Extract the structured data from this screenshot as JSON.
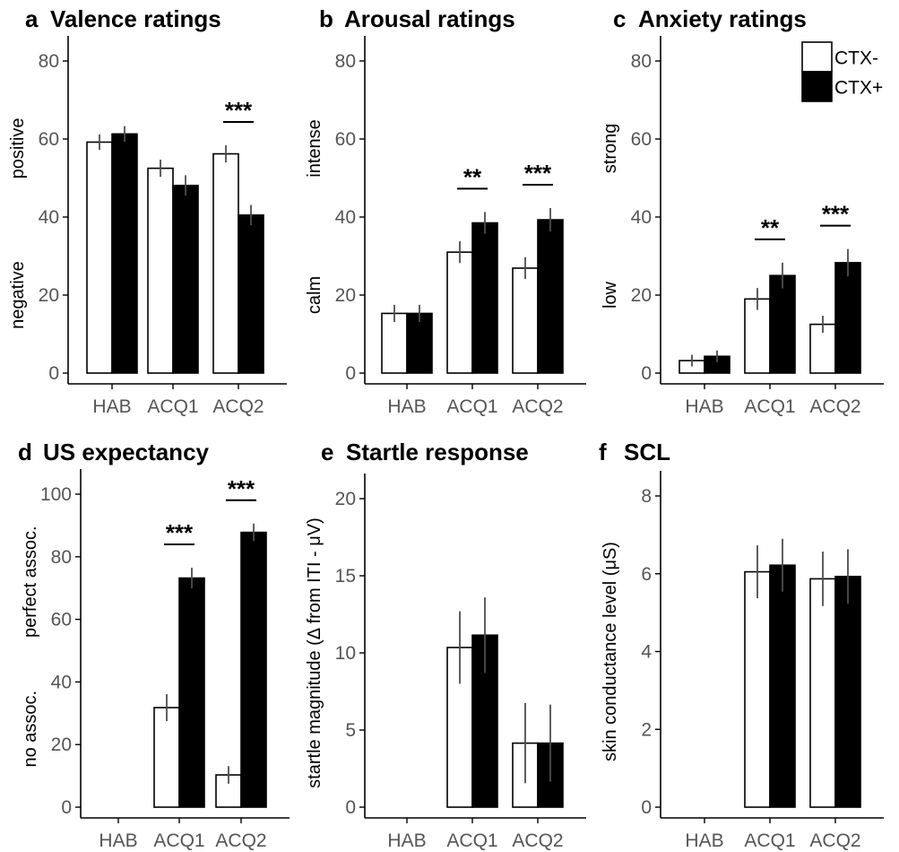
{
  "legend": {
    "entries": [
      {
        "label": "CTX-",
        "color": "#ffffff"
      },
      {
        "label": "CTX+",
        "color": "#000000"
      }
    ]
  },
  "colors": {
    "ctx_minus": "#ffffff",
    "ctx_plus": "#000000",
    "axis": "#000000",
    "error_bar": "#4d4d4d"
  },
  "chart_data": [
    {
      "type": "bar",
      "letter": "a",
      "title": "Valence ratings",
      "categories": [
        "HAB",
        "ACQ1",
        "ACQ2"
      ],
      "series": [
        {
          "name": "CTX-",
          "values": [
            59.2,
            52.5,
            56.2
          ],
          "errors": [
            2.0,
            2.2,
            2.2
          ]
        },
        {
          "name": "CTX+",
          "values": [
            61.3,
            48.1,
            40.5
          ],
          "errors": [
            2.0,
            2.6,
            2.6
          ]
        }
      ],
      "ylim": [
        0,
        80
      ],
      "yticks": [
        0,
        20,
        40,
        60,
        80
      ],
      "ylabel_top": "positive",
      "ylabel_bottom": "negative",
      "ylabel": "",
      "significance": [
        {
          "category_index": 2,
          "label": "***"
        }
      ]
    },
    {
      "type": "bar",
      "letter": "b",
      "title": "Arousal ratings",
      "categories": [
        "HAB",
        "ACQ1",
        "ACQ2"
      ],
      "series": [
        {
          "name": "CTX-",
          "values": [
            15.3,
            31.0,
            26.9
          ],
          "errors": [
            2.2,
            2.8,
            2.8
          ]
        },
        {
          "name": "CTX+",
          "values": [
            15.3,
            38.5,
            39.3
          ],
          "errors": [
            2.2,
            2.8,
            3.0
          ]
        }
      ],
      "ylim": [
        0,
        80
      ],
      "yticks": [
        0,
        20,
        40,
        60,
        80
      ],
      "ylabel_top": "intense",
      "ylabel_bottom": "calm",
      "ylabel": "",
      "significance": [
        {
          "category_index": 1,
          "label": "**"
        },
        {
          "category_index": 2,
          "label": "***"
        }
      ]
    },
    {
      "type": "bar",
      "letter": "c",
      "title": "Anxiety ratings",
      "categories": [
        "HAB",
        "ACQ1",
        "ACQ2"
      ],
      "series": [
        {
          "name": "CTX-",
          "values": [
            3.2,
            19.0,
            12.5
          ],
          "errors": [
            1.5,
            2.8,
            2.2
          ]
        },
        {
          "name": "CTX+",
          "values": [
            4.3,
            25.0,
            28.3
          ],
          "errors": [
            1.5,
            3.3,
            3.5
          ]
        }
      ],
      "ylim": [
        0,
        80
      ],
      "yticks": [
        0,
        20,
        40,
        60,
        80
      ],
      "ylabel_top": "strong",
      "ylabel_bottom": "low",
      "ylabel": "",
      "significance": [
        {
          "category_index": 1,
          "label": "**"
        },
        {
          "category_index": 2,
          "label": "***"
        }
      ],
      "show_legend": true
    },
    {
      "type": "bar",
      "letter": "d",
      "title": "US expectancy",
      "categories": [
        "HAB",
        "ACQ1",
        "ACQ2"
      ],
      "series": [
        {
          "name": "CTX-",
          "values": [
            null,
            31.8,
            10.3
          ],
          "errors": [
            null,
            4.3,
            2.8
          ]
        },
        {
          "name": "CTX+",
          "values": [
            null,
            73.2,
            87.8
          ],
          "errors": [
            null,
            3.3,
            2.8
          ]
        }
      ],
      "ylim": [
        0,
        100
      ],
      "yticks": [
        0,
        20,
        40,
        60,
        80,
        100
      ],
      "ylabel_top": "perfect assoc.",
      "ylabel_bottom": "no assoc.",
      "ylabel": "",
      "significance": [
        {
          "category_index": 1,
          "label": "***"
        },
        {
          "category_index": 2,
          "label": "***"
        }
      ]
    },
    {
      "type": "bar",
      "letter": "e",
      "title": "Startle response",
      "categories": [
        "HAB",
        "ACQ1",
        "ACQ2"
      ],
      "series": [
        {
          "name": "CTX-",
          "values": [
            null,
            10.35,
            4.15
          ],
          "errors": [
            null,
            2.35,
            2.6
          ]
        },
        {
          "name": "CTX+",
          "values": [
            null,
            11.15,
            4.15
          ],
          "errors": [
            null,
            2.45,
            2.5
          ]
        }
      ],
      "ylim": [
        0,
        20
      ],
      "yticks": [
        0,
        5,
        10,
        15,
        20
      ],
      "ylabel": "startle magnitude (Δ from ITI - μV)",
      "ylabel_top": "",
      "ylabel_bottom": "",
      "significance": []
    },
    {
      "type": "bar",
      "letter": "f",
      "title": "SCL",
      "categories": [
        "HAB",
        "ACQ1",
        "ACQ2"
      ],
      "series": [
        {
          "name": "CTX-",
          "values": [
            null,
            6.05,
            5.87
          ],
          "errors": [
            null,
            0.68,
            0.7
          ]
        },
        {
          "name": "CTX+",
          "values": [
            null,
            6.22,
            5.93
          ],
          "errors": [
            null,
            0.68,
            0.7
          ]
        }
      ],
      "ylim": [
        0,
        8
      ],
      "yticks": [
        0,
        2,
        4,
        6,
        8
      ],
      "ylabel": "skin conductance level (μS)",
      "ylabel_top": "",
      "ylabel_bottom": "",
      "significance": []
    }
  ]
}
